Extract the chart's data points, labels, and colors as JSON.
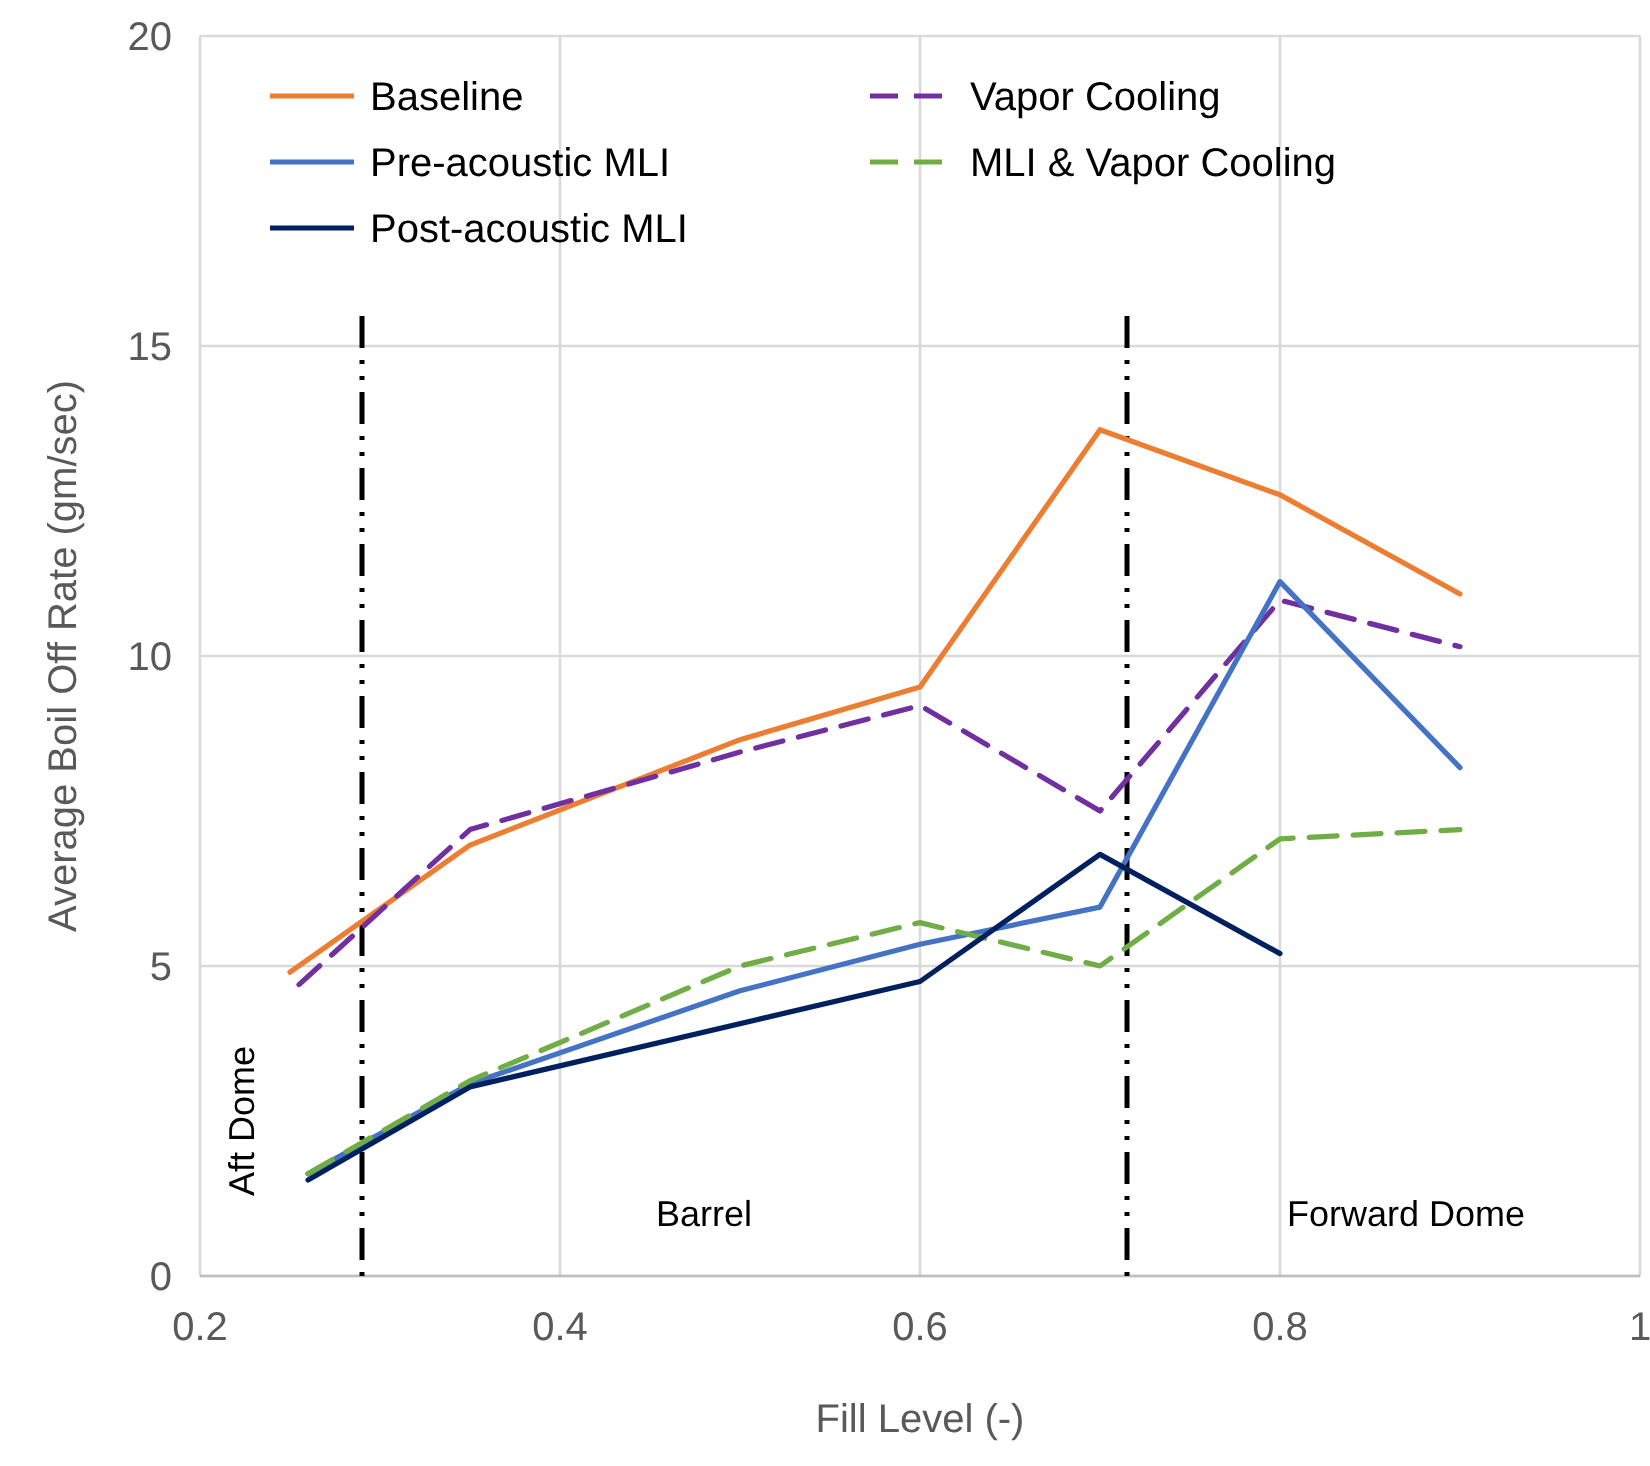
{
  "chart_data": {
    "type": "line",
    "xlabel": "Fill Level (-)",
    "ylabel": "Average Boil Off Rate (gm/sec)",
    "xlim": [
      0.2,
      1
    ],
    "xticks": [
      0.2,
      0.4,
      0.6,
      0.8,
      1
    ],
    "ylim": [
      0,
      20
    ],
    "yticks": [
      0,
      5,
      10,
      15,
      20
    ],
    "grid": true,
    "legend": "top left",
    "marker": "none",
    "series": [
      {
        "name": "Baseline",
        "color": "#ed7d31",
        "line_style": "solid",
        "x": [
          0.25,
          0.35,
          0.5,
          0.6,
          0.7,
          0.8,
          0.9
        ],
        "values": [
          4.9,
          6.95,
          8.65,
          9.5,
          13.65,
          12.6,
          11.0
        ]
      },
      {
        "name": "Vapor Cooling",
        "color": "#7030a0",
        "line_style": "dashed",
        "x": [
          0.255,
          0.35,
          0.5,
          0.6,
          0.7,
          0.8,
          0.9
        ],
        "values": [
          4.7,
          7.2,
          8.45,
          9.2,
          7.5,
          10.9,
          10.15
        ]
      },
      {
        "name": "Pre-acoustic MLI",
        "color": "#4472c4",
        "line_style": "solid",
        "x": [
          0.26,
          0.35,
          0.5,
          0.6,
          0.7,
          0.8,
          0.9
        ],
        "values": [
          1.65,
          3.1,
          4.6,
          5.35,
          5.95,
          11.2,
          8.2
        ]
      },
      {
        "name": "MLI & Vapor Cooling",
        "color": "#70ad47",
        "line_style": "dashed",
        "x": [
          0.26,
          0.35,
          0.5,
          0.6,
          0.7,
          0.8,
          0.9
        ],
        "values": [
          1.65,
          3.15,
          5.0,
          5.7,
          5.0,
          7.05,
          7.2
        ]
      },
      {
        "name": "Post-acoustic MLI",
        "color": "#002060",
        "line_style": "solid",
        "x": [
          0.26,
          0.35,
          0.6,
          0.7,
          0.8
        ],
        "values": [
          1.55,
          3.05,
          4.75,
          6.8,
          5.2
        ]
      }
    ],
    "ref_lines": [
      {
        "axis": "x",
        "value": 0.29,
        "color": "#000000",
        "line_style": "dashdotdot"
      },
      {
        "axis": "x",
        "value": 0.715,
        "color": "#000000",
        "line_style": "dashdotdot"
      }
    ],
    "annotations": [
      "Aft Dome",
      "Barrel",
      "Forward Dome"
    ]
  }
}
